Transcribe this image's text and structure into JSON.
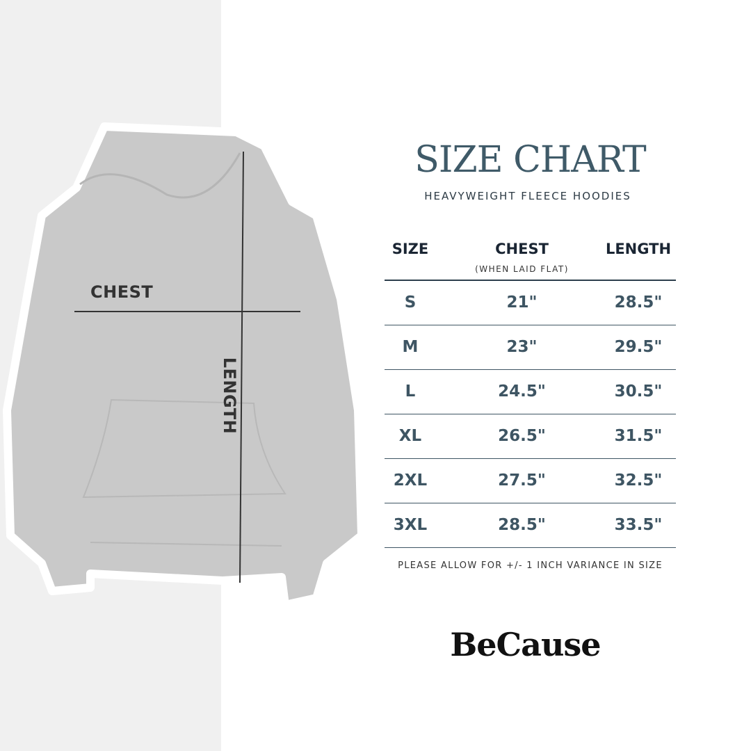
{
  "image": {
    "chest_label": "CHEST",
    "length_label": "LENGTH"
  },
  "title": "SIZE CHART",
  "subtitle": "HEAVYWEIGHT FLEECE HOODIES",
  "table": {
    "headers": [
      "SIZE",
      "CHEST",
      "LENGTH"
    ],
    "chest_note": "(WHEN LAID FLAT)",
    "rows": [
      [
        "S",
        "21\"",
        "28.5\""
      ],
      [
        "M",
        "23\"",
        "29.5\""
      ],
      [
        "L",
        "24.5\"",
        "30.5\""
      ],
      [
        "XL",
        "26.5\"",
        "31.5\""
      ],
      [
        "2XL",
        "27.5\"",
        "32.5\""
      ],
      [
        "3XL",
        "28.5\"",
        "33.5\""
      ]
    ]
  },
  "note": "PLEASE ALLOW FOR +/- 1 INCH VARIANCE IN SIZE",
  "brand": "BeCause",
  "colors": {
    "title": "#3f5a68",
    "values": "#3e5563",
    "headers": "#1a2533",
    "hoodie": "#c9c9c9"
  }
}
